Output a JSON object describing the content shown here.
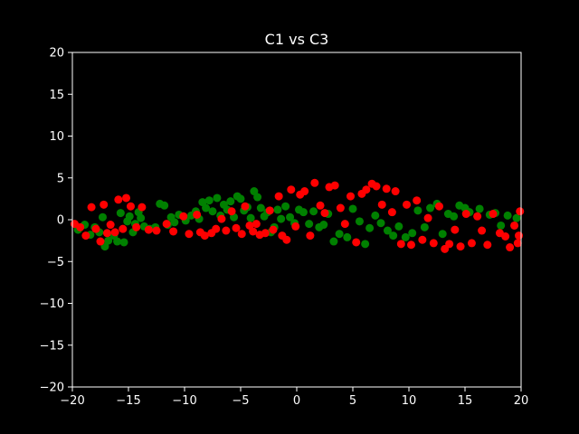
{
  "chart_data": {
    "type": "scatter",
    "title": "C1 vs C3",
    "xlabel": "",
    "ylabel": "",
    "xlim": [
      -20,
      20
    ],
    "ylim": [
      -20,
      20
    ],
    "x_ticks": [
      -20,
      -15,
      -10,
      -5,
      0,
      5,
      10,
      15,
      20
    ],
    "y_ticks": [
      -20,
      -15,
      -10,
      -5,
      0,
      5,
      10,
      15,
      20
    ],
    "x_tick_labels": [
      "−20",
      "−15",
      "−10",
      "−5",
      "0",
      "5",
      "10",
      "15",
      "20"
    ],
    "y_tick_labels": [
      "−20",
      "−15",
      "−10",
      "−5",
      "0",
      "5",
      "10",
      "15",
      "20"
    ],
    "grid": false,
    "background": "#000000",
    "axes_color": "#ffffff",
    "series": [
      {
        "color": "#008000",
        "points": [
          [
            -19.5,
            -1.2
          ],
          [
            -18.9,
            -0.6
          ],
          [
            -18.4,
            -1.8
          ],
          [
            -18.0,
            -0.9
          ],
          [
            -17.6,
            -1.5
          ],
          [
            -17.3,
            0.3
          ],
          [
            -17.1,
            -3.2
          ],
          [
            -16.8,
            -2.5
          ],
          [
            -16.3,
            -1.9
          ],
          [
            -16.0,
            -2.6
          ],
          [
            -15.7,
            0.8
          ],
          [
            -15.4,
            -2.7
          ],
          [
            -15.1,
            -0.2
          ],
          [
            -14.9,
            0.4
          ],
          [
            -14.6,
            -1.5
          ],
          [
            -14.4,
            -0.5
          ],
          [
            -14.1,
            0.9
          ],
          [
            -13.9,
            0.2
          ],
          [
            -13.6,
            -0.8
          ],
          [
            -13.1,
            -1.1
          ],
          [
            -12.6,
            -0.9
          ],
          [
            -12.2,
            1.9
          ],
          [
            -11.8,
            1.7
          ],
          [
            -11.5,
            -0.6
          ],
          [
            -11.2,
            0.3
          ],
          [
            -10.9,
            -0.3
          ],
          [
            -10.5,
            0.6
          ],
          [
            -9.9,
            -0.1
          ],
          [
            -9.4,
            0.5
          ],
          [
            -9.0,
            1.0
          ],
          [
            -8.7,
            0.1
          ],
          [
            -8.4,
            2.1
          ],
          [
            -8.1,
            1.4
          ],
          [
            -7.8,
            2.3
          ],
          [
            -7.5,
            1.0
          ],
          [
            -7.1,
            2.6
          ],
          [
            -6.8,
            0.5
          ],
          [
            -6.5,
            1.8
          ],
          [
            -6.2,
            1.2
          ],
          [
            -5.9,
            2.2
          ],
          [
            -5.6,
            0.3
          ],
          [
            -5.3,
            2.8
          ],
          [
            -5.0,
            2.5
          ],
          [
            -4.7,
            1.1
          ],
          [
            -4.4,
            1.5
          ],
          [
            -4.1,
            0.2
          ],
          [
            -3.8,
            3.4
          ],
          [
            -3.5,
            2.7
          ],
          [
            -3.2,
            1.4
          ],
          [
            -2.9,
            0.4
          ],
          [
            -2.6,
            0.9
          ],
          [
            -2.3,
            -1.5
          ],
          [
            -2.0,
            -0.9
          ],
          [
            -1.7,
            1.2
          ],
          [
            -1.4,
            0.1
          ],
          [
            -1.0,
            1.6
          ],
          [
            -0.6,
            0.3
          ],
          [
            -0.2,
            -0.4
          ],
          [
            0.2,
            1.2
          ],
          [
            0.6,
            0.9
          ],
          [
            1.1,
            -0.5
          ],
          [
            1.5,
            1.0
          ],
          [
            2.0,
            -0.9
          ],
          [
            2.4,
            -0.6
          ],
          [
            2.8,
            0.7
          ],
          [
            3.3,
            -2.6
          ],
          [
            3.8,
            -1.7
          ],
          [
            4.5,
            -2.1
          ],
          [
            5.0,
            1.3
          ],
          [
            5.6,
            -0.2
          ],
          [
            6.1,
            -2.9
          ],
          [
            6.5,
            -1.0
          ],
          [
            7.0,
            0.5
          ],
          [
            7.5,
            -0.4
          ],
          [
            8.1,
            -1.3
          ],
          [
            8.6,
            -1.9
          ],
          [
            9.1,
            -0.8
          ],
          [
            9.7,
            -2.1
          ],
          [
            10.3,
            -1.6
          ],
          [
            10.8,
            1.1
          ],
          [
            11.4,
            -0.9
          ],
          [
            11.9,
            1.4
          ],
          [
            12.5,
            1.9
          ],
          [
            13.0,
            -1.7
          ],
          [
            13.5,
            0.7
          ],
          [
            14.0,
            0.4
          ],
          [
            14.5,
            1.7
          ],
          [
            15.0,
            1.4
          ],
          [
            15.4,
            0.9
          ],
          [
            16.3,
            1.3
          ],
          [
            17.2,
            0.6
          ],
          [
            17.7,
            0.8
          ],
          [
            18.2,
            -0.7
          ],
          [
            18.8,
            0.5
          ],
          [
            19.6,
            0.2
          ]
        ]
      },
      {
        "color": "#ff0000",
        "points": [
          [
            -19.8,
            -0.5
          ],
          [
            -19.3,
            -0.9
          ],
          [
            -18.8,
            -1.9
          ],
          [
            -18.3,
            1.5
          ],
          [
            -17.9,
            -1.1
          ],
          [
            -17.5,
            -2.6
          ],
          [
            -17.2,
            1.8
          ],
          [
            -16.9,
            -1.6
          ],
          [
            -16.6,
            -0.6
          ],
          [
            -16.2,
            -1.5
          ],
          [
            -15.9,
            2.4
          ],
          [
            -15.5,
            -1.1
          ],
          [
            -15.2,
            2.6
          ],
          [
            -14.8,
            1.6
          ],
          [
            -14.3,
            -0.9
          ],
          [
            -13.8,
            1.5
          ],
          [
            -13.2,
            -1.2
          ],
          [
            -12.5,
            -1.3
          ],
          [
            -11.6,
            -0.5
          ],
          [
            -11.0,
            -1.4
          ],
          [
            -10.1,
            0.4
          ],
          [
            -9.6,
            -1.7
          ],
          [
            -8.9,
            0.6
          ],
          [
            -8.6,
            -1.5
          ],
          [
            -8.2,
            -1.9
          ],
          [
            -7.6,
            -1.6
          ],
          [
            -7.2,
            -1.1
          ],
          [
            -6.7,
            0.1
          ],
          [
            -6.3,
            -1.3
          ],
          [
            -5.8,
            1.0
          ],
          [
            -5.4,
            -1.0
          ],
          [
            -4.9,
            -1.7
          ],
          [
            -4.6,
            1.6
          ],
          [
            -4.2,
            -0.7
          ],
          [
            -3.9,
            -1.4
          ],
          [
            -3.6,
            -0.5
          ],
          [
            -3.3,
            -1.8
          ],
          [
            -2.8,
            -1.6
          ],
          [
            -2.4,
            1.1
          ],
          [
            -2.1,
            -1.2
          ],
          [
            -1.6,
            2.8
          ],
          [
            -1.3,
            -1.9
          ],
          [
            -0.9,
            -2.4
          ],
          [
            -0.5,
            3.6
          ],
          [
            -0.1,
            -0.8
          ],
          [
            0.3,
            3.0
          ],
          [
            0.7,
            3.4
          ],
          [
            1.2,
            -1.9
          ],
          [
            1.6,
            4.4
          ],
          [
            2.1,
            1.7
          ],
          [
            2.5,
            0.8
          ],
          [
            2.9,
            3.9
          ],
          [
            3.4,
            4.1
          ],
          [
            3.9,
            1.4
          ],
          [
            4.3,
            -0.5
          ],
          [
            4.8,
            2.8
          ],
          [
            5.3,
            -2.7
          ],
          [
            5.8,
            3.1
          ],
          [
            6.2,
            3.6
          ],
          [
            6.7,
            4.3
          ],
          [
            7.1,
            4.0
          ],
          [
            7.6,
            1.8
          ],
          [
            8.0,
            3.7
          ],
          [
            8.5,
            0.9
          ],
          [
            8.8,
            3.4
          ],
          [
            9.3,
            -2.9
          ],
          [
            9.8,
            1.8
          ],
          [
            10.2,
            -3.0
          ],
          [
            10.7,
            2.3
          ],
          [
            11.2,
            -2.4
          ],
          [
            11.7,
            0.2
          ],
          [
            12.2,
            -2.8
          ],
          [
            12.7,
            1.6
          ],
          [
            13.2,
            -3.5
          ],
          [
            13.6,
            -2.9
          ],
          [
            14.1,
            -1.2
          ],
          [
            14.6,
            -3.2
          ],
          [
            15.1,
            0.7
          ],
          [
            15.6,
            -2.8
          ],
          [
            16.1,
            0.4
          ],
          [
            16.5,
            -1.3
          ],
          [
            17.0,
            -3.0
          ],
          [
            17.5,
            0.7
          ],
          [
            18.1,
            -1.6
          ],
          [
            18.6,
            -2.0
          ],
          [
            19.0,
            -3.3
          ],
          [
            19.4,
            -0.7
          ],
          [
            19.9,
            1.0
          ],
          [
            19.8,
            -1.9
          ],
          [
            19.7,
            -2.8
          ]
        ]
      }
    ]
  }
}
